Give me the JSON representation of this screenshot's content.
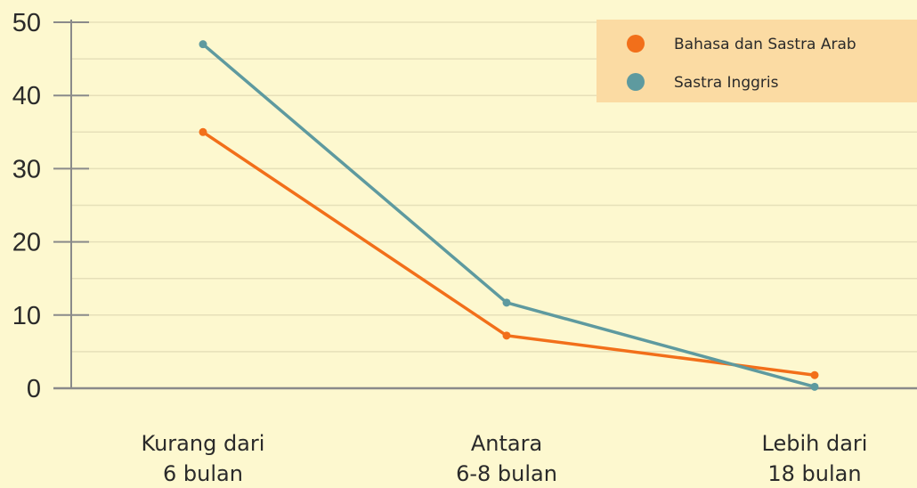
{
  "chart_data": {
    "type": "line",
    "title": "",
    "xlabel": "",
    "ylabel": "",
    "ylim": [
      0,
      50
    ],
    "yticks": [
      0,
      10,
      20,
      30,
      40,
      50
    ],
    "grid": true,
    "legend_position": "top-right",
    "categories": [
      [
        "Kurang dari",
        "6 bulan"
      ],
      [
        "Antara",
        "6-8 bulan"
      ],
      [
        "Lebih dari",
        "18 bulan"
      ]
    ],
    "series": [
      {
        "name": "Bahasa dan Sastra Arab",
        "color": "#f26f1a",
        "values": [
          35,
          7.2,
          1.8
        ]
      },
      {
        "name": "Sastra Inggris",
        "color": "#5e9a9f",
        "values": [
          47,
          11.7,
          0.2
        ]
      }
    ],
    "colors": {
      "background": "#fdf8cf",
      "legend_background": "#fbdba3",
      "axis": "#8a8a8a",
      "grid": "#e6e0b9"
    }
  }
}
